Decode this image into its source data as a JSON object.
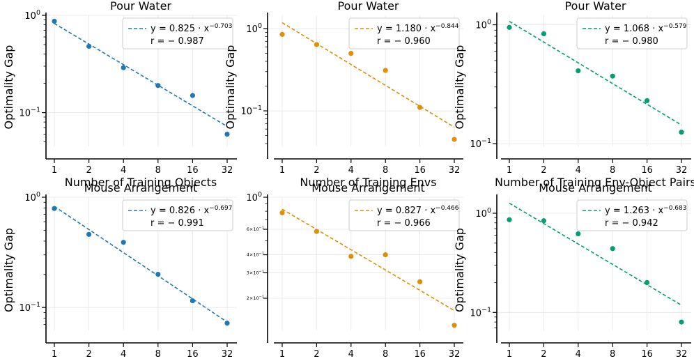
{
  "chart_data": [
    {
      "type": "scatter",
      "title": "Pour Water",
      "xlabel": "Number of Training Objects",
      "ylabel": "Optimality Gap",
      "color": "#1f77b4",
      "x": [
        1,
        2,
        4,
        8,
        16,
        32
      ],
      "y": [
        0.87,
        0.48,
        0.29,
        0.19,
        0.15,
        0.06
      ],
      "fit": {
        "a": 0.825,
        "b": -0.703,
        "equation_prefix": "y = 0.825 · x",
        "exponent": "−0.703",
        "r_label": "r = − 0.987"
      },
      "xscale": "log2",
      "yscale": "log",
      "ylim": [
        0.045,
        1.0
      ],
      "yticks": [
        {
          "value": 1.0,
          "base": "10",
          "exp": "0"
        },
        {
          "value": 0.1,
          "base": "10",
          "exp": "−1"
        }
      ],
      "xtick_labels": [
        "1",
        "2",
        "4",
        "8",
        "16",
        "32"
      ],
      "grid": true,
      "legend": "top-right"
    },
    {
      "type": "scatter",
      "title": "Pour Water",
      "xlabel": "Number of Training Envs",
      "ylabel": "Optimality Gap",
      "color": "#de8f05",
      "x": [
        1,
        2,
        4,
        8,
        16,
        32
      ],
      "y": [
        0.85,
        0.64,
        0.5,
        0.31,
        0.11,
        0.045
      ],
      "fit": {
        "a": 1.18,
        "b": -0.844,
        "equation_prefix": "y = 1.180 · x",
        "exponent": "−0.844",
        "r_label": "r = − 0.960"
      },
      "xscale": "log2",
      "yscale": "log",
      "ylim": [
        0.037,
        1.45
      ],
      "yticks": [
        {
          "value": 1.0,
          "base": "10",
          "exp": "0"
        },
        {
          "value": 0.1,
          "base": "10",
          "exp": "−1"
        }
      ],
      "xtick_labels": [
        "1",
        "2",
        "4",
        "8",
        "16",
        "32"
      ],
      "grid": true,
      "legend": "top-right"
    },
    {
      "type": "scatter",
      "title": "Pour Water",
      "xlabel": "Number of Training Env-Object Pairs",
      "ylabel": "Optimality Gap",
      "color": "#029e73",
      "x": [
        1,
        2,
        4,
        8,
        16,
        32
      ],
      "y": [
        0.95,
        0.84,
        0.41,
        0.37,
        0.23,
        0.125
      ],
      "fit": {
        "a": 1.068,
        "b": -0.579,
        "equation_prefix": "y = 1.068 · x",
        "exponent": "−0.579",
        "r_label": "r = − 0.980"
      },
      "xscale": "log2",
      "yscale": "log",
      "ylim": [
        0.095,
        1.2
      ],
      "yticks": [
        {
          "value": 1.0,
          "base": "10",
          "exp": "0"
        },
        {
          "value": 0.1,
          "base": "10",
          "exp": "−1"
        }
      ],
      "xtick_labels": [
        "1",
        "2",
        "4",
        "8",
        "16",
        "32"
      ],
      "grid": true,
      "legend": "top-right"
    },
    {
      "type": "scatter",
      "title": "Mouse Arrangement",
      "xlabel": "Number of Training Objects",
      "ylabel": "Optimality Gap",
      "color": "#1f77b4",
      "x": [
        1,
        2,
        4,
        8,
        16,
        32
      ],
      "y": [
        0.79,
        0.46,
        0.39,
        0.2,
        0.115,
        0.072
      ],
      "fit": {
        "a": 0.826,
        "b": -0.697,
        "equation_prefix": "y = 0.826 · x",
        "exponent": "−0.697",
        "r_label": "r = − 0.991"
      },
      "xscale": "log2",
      "yscale": "log",
      "ylim": [
        0.062,
        1.0
      ],
      "yticks": [
        {
          "value": 1.0,
          "base": "10",
          "exp": "0"
        },
        {
          "value": 0.1,
          "base": "10",
          "exp": "−1"
        }
      ],
      "xtick_labels": [
        "1",
        "2",
        "4",
        "8",
        "16",
        "32"
      ],
      "grid": true,
      "legend": "top-right"
    },
    {
      "type": "scatter",
      "title": "Mouse Arrangement",
      "xlabel": "Number of Training Envs",
      "ylabel": "",
      "color": "#de8f05",
      "x": [
        1,
        2,
        4,
        8,
        16,
        32
      ],
      "y": [
        0.78,
        0.58,
        0.39,
        0.4,
        0.26,
        0.13
      ],
      "fit": {
        "a": 0.827,
        "b": -0.466,
        "equation_prefix": "y = 0.827 · x",
        "exponent": "−0.466",
        "r_label": "r = − 0.966"
      },
      "xscale": "log2",
      "yscale": "log",
      "ylim": [
        0.12,
        1.0
      ],
      "yticks": [
        {
          "value": 1.0,
          "base": "10",
          "exp": "0"
        },
        {
          "value": 0.6,
          "base": "6×10",
          "exp": "−1",
          "small": true
        },
        {
          "value": 0.4,
          "base": "4×10",
          "exp": "−1",
          "small": true
        },
        {
          "value": 0.3,
          "base": "3×10",
          "exp": "−1",
          "small": true
        },
        {
          "value": 0.2,
          "base": "2×10",
          "exp": "−1",
          "small": true
        }
      ],
      "xtick_labels": [
        "1",
        "2",
        "4",
        "8",
        "16",
        "32"
      ],
      "grid": true,
      "legend": "top-right"
    },
    {
      "type": "scatter",
      "title": "Mouse Arrangement",
      "xlabel": "Number of Training Env-Object Pairs",
      "ylabel": "Optimality Gap",
      "color": "#029e73",
      "x": [
        1,
        2,
        4,
        8,
        16,
        32
      ],
      "y": [
        0.86,
        0.84,
        0.62,
        0.44,
        0.2,
        0.08
      ],
      "fit": {
        "a": 1.263,
        "b": -0.683,
        "equation_prefix": "y = 1.263 · x",
        "exponent": "−0.683",
        "r_label": "r = − 0.942"
      },
      "xscale": "log2",
      "yscale": "log",
      "ylim": [
        0.066,
        1.45
      ],
      "yticks": [
        {
          "value": 1.0,
          "base": "10",
          "exp": "0"
        },
        {
          "value": 0.1,
          "base": "10",
          "exp": "−1"
        }
      ],
      "xtick_labels": [
        "1",
        "2",
        "4",
        "8",
        "16",
        "32"
      ],
      "grid": true,
      "legend": "top-right"
    }
  ]
}
